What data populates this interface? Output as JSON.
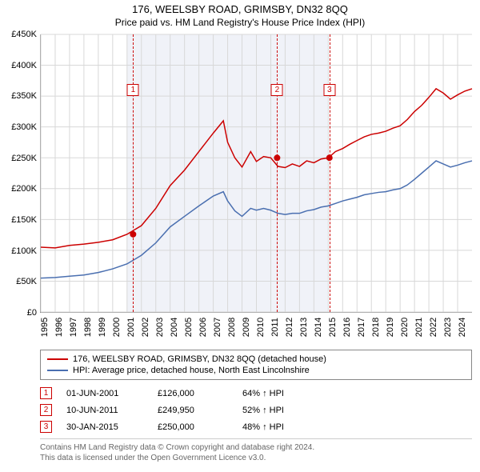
{
  "title": "176, WEELSBY ROAD, GRIMSBY, DN32 8QQ",
  "subtitle": "Price paid vs. HM Land Registry's House Price Index (HPI)",
  "chart": {
    "type": "line",
    "ylim": [
      0,
      450000
    ],
    "ytick_step": 50000,
    "y_ticks": [
      "£0",
      "£50K",
      "£100K",
      "£150K",
      "£200K",
      "£250K",
      "£300K",
      "£350K",
      "£400K",
      "£450K"
    ],
    "x_years": [
      1995,
      1996,
      1997,
      1998,
      1999,
      2000,
      2001,
      2002,
      2003,
      2004,
      2005,
      2006,
      2007,
      2008,
      2009,
      2010,
      2011,
      2012,
      2013,
      2014,
      2015,
      2016,
      2017,
      2018,
      2019,
      2020,
      2021,
      2022,
      2023,
      2024
    ],
    "xlim": [
      1995,
      2025
    ],
    "shade_span": [
      2001,
      2015
    ],
    "background_color": "#ffffff",
    "shade_color": "#f0f2f8",
    "grid_color": "#d8d8d8",
    "colors": {
      "price": "#cc0000",
      "hpi": "#4a6fb0"
    },
    "line_width": 1.5,
    "marker_color": "#cc0000",
    "marker_radius": 4,
    "series_price": [
      [
        1995,
        105000
      ],
      [
        1996,
        104000
      ],
      [
        1997,
        108000
      ],
      [
        1998,
        110000
      ],
      [
        1999,
        113000
      ],
      [
        2000,
        117000
      ],
      [
        2001,
        126000
      ],
      [
        2002,
        140000
      ],
      [
        2003,
        168000
      ],
      [
        2004,
        205000
      ],
      [
        2005,
        230000
      ],
      [
        2006,
        260000
      ],
      [
        2007,
        290000
      ],
      [
        2007.7,
        310000
      ],
      [
        2008,
        275000
      ],
      [
        2008.5,
        250000
      ],
      [
        2009,
        235000
      ],
      [
        2009.6,
        260000
      ],
      [
        2010,
        244000
      ],
      [
        2010.5,
        252000
      ],
      [
        2011,
        249950
      ],
      [
        2011.5,
        236000
      ],
      [
        2012,
        234000
      ],
      [
        2012.5,
        240000
      ],
      [
        2013,
        236000
      ],
      [
        2013.5,
        245000
      ],
      [
        2014,
        242000
      ],
      [
        2014.5,
        248000
      ],
      [
        2015,
        250000
      ],
      [
        2015.5,
        260000
      ],
      [
        2016,
        265000
      ],
      [
        2016.5,
        272000
      ],
      [
        2017,
        278000
      ],
      [
        2017.5,
        284000
      ],
      [
        2018,
        288000
      ],
      [
        2018.5,
        290000
      ],
      [
        2019,
        293000
      ],
      [
        2019.5,
        298000
      ],
      [
        2020,
        302000
      ],
      [
        2020.5,
        312000
      ],
      [
        2021,
        325000
      ],
      [
        2021.5,
        335000
      ],
      [
        2022,
        348000
      ],
      [
        2022.5,
        362000
      ],
      [
        2023,
        355000
      ],
      [
        2023.5,
        345000
      ],
      [
        2024,
        352000
      ],
      [
        2024.5,
        358000
      ],
      [
        2025,
        362000
      ]
    ],
    "series_hpi": [
      [
        1995,
        55000
      ],
      [
        1996,
        56000
      ],
      [
        1997,
        58000
      ],
      [
        1998,
        60000
      ],
      [
        1999,
        64000
      ],
      [
        2000,
        70000
      ],
      [
        2001,
        78000
      ],
      [
        2002,
        92000
      ],
      [
        2003,
        112000
      ],
      [
        2004,
        138000
      ],
      [
        2005,
        155000
      ],
      [
        2006,
        172000
      ],
      [
        2007,
        188000
      ],
      [
        2007.7,
        195000
      ],
      [
        2008,
        180000
      ],
      [
        2008.5,
        164000
      ],
      [
        2009,
        155000
      ],
      [
        2009.6,
        168000
      ],
      [
        2010,
        165000
      ],
      [
        2010.5,
        168000
      ],
      [
        2011,
        165000
      ],
      [
        2011.5,
        160000
      ],
      [
        2012,
        158000
      ],
      [
        2012.5,
        160000
      ],
      [
        2013,
        160000
      ],
      [
        2013.5,
        164000
      ],
      [
        2014,
        166000
      ],
      [
        2014.5,
        170000
      ],
      [
        2015,
        172000
      ],
      [
        2015.5,
        176000
      ],
      [
        2016,
        180000
      ],
      [
        2016.5,
        183000
      ],
      [
        2017,
        186000
      ],
      [
        2017.5,
        190000
      ],
      [
        2018,
        192000
      ],
      [
        2018.5,
        194000
      ],
      [
        2019,
        195000
      ],
      [
        2019.5,
        198000
      ],
      [
        2020,
        200000
      ],
      [
        2020.5,
        206000
      ],
      [
        2021,
        215000
      ],
      [
        2021.5,
        225000
      ],
      [
        2022,
        235000
      ],
      [
        2022.5,
        245000
      ],
      [
        2023,
        240000
      ],
      [
        2023.5,
        235000
      ],
      [
        2024,
        238000
      ],
      [
        2024.5,
        242000
      ],
      [
        2025,
        245000
      ]
    ],
    "sale_markers": [
      {
        "n": "1",
        "year": 2001.42,
        "price": 126000,
        "badge_y": 0.18
      },
      {
        "n": "2",
        "year": 2011.44,
        "price": 249950,
        "badge_y": 0.18
      },
      {
        "n": "3",
        "year": 2015.08,
        "price": 250000,
        "badge_y": 0.18
      }
    ]
  },
  "legend": {
    "items": [
      {
        "color": "#cc0000",
        "label": "176, WEELSBY ROAD, GRIMSBY, DN32 8QQ (detached house)"
      },
      {
        "color": "#4a6fb0",
        "label": "HPI: Average price, detached house, North East Lincolnshire"
      }
    ]
  },
  "sales": [
    {
      "n": "1",
      "date": "01-JUN-2001",
      "price": "£126,000",
      "pct": "64% ↑ HPI"
    },
    {
      "n": "2",
      "date": "10-JUN-2011",
      "price": "£249,950",
      "pct": "52% ↑ HPI"
    },
    {
      "n": "3",
      "date": "30-JAN-2015",
      "price": "£250,000",
      "pct": "48% ↑ HPI"
    }
  ],
  "footer_line1": "Contains HM Land Registry data © Crown copyright and database right 2024.",
  "footer_line2": "This data is licensed under the Open Government Licence v3.0."
}
